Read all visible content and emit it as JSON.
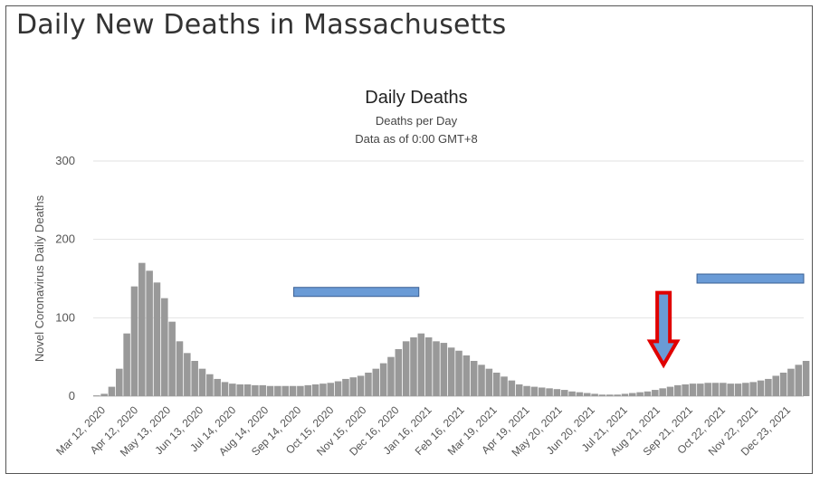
{
  "page_title": "Daily New Deaths in Massachusetts",
  "chart_data": {
    "type": "bar",
    "title": "Daily Deaths",
    "subtitle_lines": [
      "Deaths per Day",
      "Data as of 0:00 GMT+8"
    ],
    "ylabel": "Novel Coronavirus Daily Deaths",
    "xlabel": "",
    "ylim": [
      0,
      300
    ],
    "yticks": [
      0,
      100,
      200,
      300
    ],
    "grid": true,
    "bar_color": "#999999",
    "x_start": "2020-03-12",
    "x_end": "2021-12-31",
    "xtick_labels": [
      "Mar 12, 2020",
      "Apr 12, 2020",
      "May 13, 2020",
      "Jun 13, 2020",
      "Jul 14, 2020",
      "Aug 14, 2020",
      "Sep 14, 2020",
      "Oct 15, 2020",
      "Nov 15, 2020",
      "Dec 16, 2020",
      "Jan 16, 2021",
      "Feb 16, 2021",
      "Mar 19, 2021",
      "Apr 19, 2021",
      "May 20, 2021",
      "Jun 20, 2021",
      "Jul 21, 2021",
      "Aug 21, 2021",
      "Sep 21, 2021",
      "Oct 22, 2021",
      "Nov 22, 2021",
      "Dec 23, 2021"
    ],
    "approx_weekly_daily_deaths": [
      {
        "week_of": "2020-03-12",
        "value": 1
      },
      {
        "week_of": "2020-03-19",
        "value": 3
      },
      {
        "week_of": "2020-03-26",
        "value": 12
      },
      {
        "week_of": "2020-04-02",
        "value": 35
      },
      {
        "week_of": "2020-04-09",
        "value": 80
      },
      {
        "week_of": "2020-04-16",
        "value": 140
      },
      {
        "week_of": "2020-04-23",
        "value": 170
      },
      {
        "week_of": "2020-04-30",
        "value": 160
      },
      {
        "week_of": "2020-05-07",
        "value": 145
      },
      {
        "week_of": "2020-05-14",
        "value": 125
      },
      {
        "week_of": "2020-05-21",
        "value": 95
      },
      {
        "week_of": "2020-05-28",
        "value": 70
      },
      {
        "week_of": "2020-06-04",
        "value": 55
      },
      {
        "week_of": "2020-06-11",
        "value": 45
      },
      {
        "week_of": "2020-06-18",
        "value": 35
      },
      {
        "week_of": "2020-06-25",
        "value": 28
      },
      {
        "week_of": "2020-07-02",
        "value": 22
      },
      {
        "week_of": "2020-07-09",
        "value": 18
      },
      {
        "week_of": "2020-07-16",
        "value": 16
      },
      {
        "week_of": "2020-07-23",
        "value": 15
      },
      {
        "week_of": "2020-07-30",
        "value": 15
      },
      {
        "week_of": "2020-08-06",
        "value": 14
      },
      {
        "week_of": "2020-08-13",
        "value": 14
      },
      {
        "week_of": "2020-08-20",
        "value": 13
      },
      {
        "week_of": "2020-08-27",
        "value": 13
      },
      {
        "week_of": "2020-09-03",
        "value": 13
      },
      {
        "week_of": "2020-09-10",
        "value": 13
      },
      {
        "week_of": "2020-09-17",
        "value": 13
      },
      {
        "week_of": "2020-09-24",
        "value": 14
      },
      {
        "week_of": "2020-10-01",
        "value": 15
      },
      {
        "week_of": "2020-10-08",
        "value": 16
      },
      {
        "week_of": "2020-10-15",
        "value": 17
      },
      {
        "week_of": "2020-10-22",
        "value": 19
      },
      {
        "week_of": "2020-10-29",
        "value": 22
      },
      {
        "week_of": "2020-11-05",
        "value": 24
      },
      {
        "week_of": "2020-11-12",
        "value": 26
      },
      {
        "week_of": "2020-11-19",
        "value": 30
      },
      {
        "week_of": "2020-11-26",
        "value": 35
      },
      {
        "week_of": "2020-12-03",
        "value": 42
      },
      {
        "week_of": "2020-12-10",
        "value": 50
      },
      {
        "week_of": "2020-12-17",
        "value": 60
      },
      {
        "week_of": "2020-12-24",
        "value": 70
      },
      {
        "week_of": "2020-12-31",
        "value": 75
      },
      {
        "week_of": "2021-01-07",
        "value": 80
      },
      {
        "week_of": "2021-01-14",
        "value": 75
      },
      {
        "week_of": "2021-01-21",
        "value": 70
      },
      {
        "week_of": "2021-01-28",
        "value": 68
      },
      {
        "week_of": "2021-02-04",
        "value": 62
      },
      {
        "week_of": "2021-02-11",
        "value": 58
      },
      {
        "week_of": "2021-02-18",
        "value": 52
      },
      {
        "week_of": "2021-02-25",
        "value": 45
      },
      {
        "week_of": "2021-03-04",
        "value": 40
      },
      {
        "week_of": "2021-03-11",
        "value": 35
      },
      {
        "week_of": "2021-03-18",
        "value": 30
      },
      {
        "week_of": "2021-03-25",
        "value": 25
      },
      {
        "week_of": "2021-04-01",
        "value": 20
      },
      {
        "week_of": "2021-04-08",
        "value": 15
      },
      {
        "week_of": "2021-04-15",
        "value": 13
      },
      {
        "week_of": "2021-04-22",
        "value": 12
      },
      {
        "week_of": "2021-04-29",
        "value": 11
      },
      {
        "week_of": "2021-05-06",
        "value": 10
      },
      {
        "week_of": "2021-05-13",
        "value": 9
      },
      {
        "week_of": "2021-05-20",
        "value": 8
      },
      {
        "week_of": "2021-05-27",
        "value": 6
      },
      {
        "week_of": "2021-06-03",
        "value": 5
      },
      {
        "week_of": "2021-06-10",
        "value": 4
      },
      {
        "week_of": "2021-06-17",
        "value": 3
      },
      {
        "week_of": "2021-06-24",
        "value": 2
      },
      {
        "week_of": "2021-07-01",
        "value": 2
      },
      {
        "week_of": "2021-07-08",
        "value": 2
      },
      {
        "week_of": "2021-07-15",
        "value": 3
      },
      {
        "week_of": "2021-07-22",
        "value": 4
      },
      {
        "week_of": "2021-07-29",
        "value": 5
      },
      {
        "week_of": "2021-08-05",
        "value": 6
      },
      {
        "week_of": "2021-08-12",
        "value": 8
      },
      {
        "week_of": "2021-08-19",
        "value": 10
      },
      {
        "week_of": "2021-08-26",
        "value": 12
      },
      {
        "week_of": "2021-09-02",
        "value": 14
      },
      {
        "week_of": "2021-09-09",
        "value": 15
      },
      {
        "week_of": "2021-09-16",
        "value": 16
      },
      {
        "week_of": "2021-09-23",
        "value": 16
      },
      {
        "week_of": "2021-09-30",
        "value": 17
      },
      {
        "week_of": "2021-10-07",
        "value": 17
      },
      {
        "week_of": "2021-10-14",
        "value": 17
      },
      {
        "week_of": "2021-10-21",
        "value": 16
      },
      {
        "week_of": "2021-10-28",
        "value": 16
      },
      {
        "week_of": "2021-11-04",
        "value": 17
      },
      {
        "week_of": "2021-11-11",
        "value": 18
      },
      {
        "week_of": "2021-11-18",
        "value": 20
      },
      {
        "week_of": "2021-11-25",
        "value": 22
      },
      {
        "week_of": "2021-12-02",
        "value": 26
      },
      {
        "week_of": "2021-12-09",
        "value": 30
      },
      {
        "week_of": "2021-12-16",
        "value": 35
      },
      {
        "week_of": "2021-12-23",
        "value": 40
      },
      {
        "week_of": "2021-12-30",
        "value": 45
      }
    ],
    "annotation_bars": [
      {
        "x_start": "2020-09-14",
        "x_end": "2021-01-08",
        "y": 133,
        "color": "#6a9bd6"
      },
      {
        "x_start": "2021-09-23",
        "x_end": "2021-12-31",
        "y": 150,
        "color": "#6a9bd6"
      }
    ],
    "annotation_arrow": {
      "x": "2021-08-23",
      "y_top": 132,
      "y_bottom": 40,
      "fill": "#6a9bd6",
      "stroke": "#e00000"
    }
  }
}
